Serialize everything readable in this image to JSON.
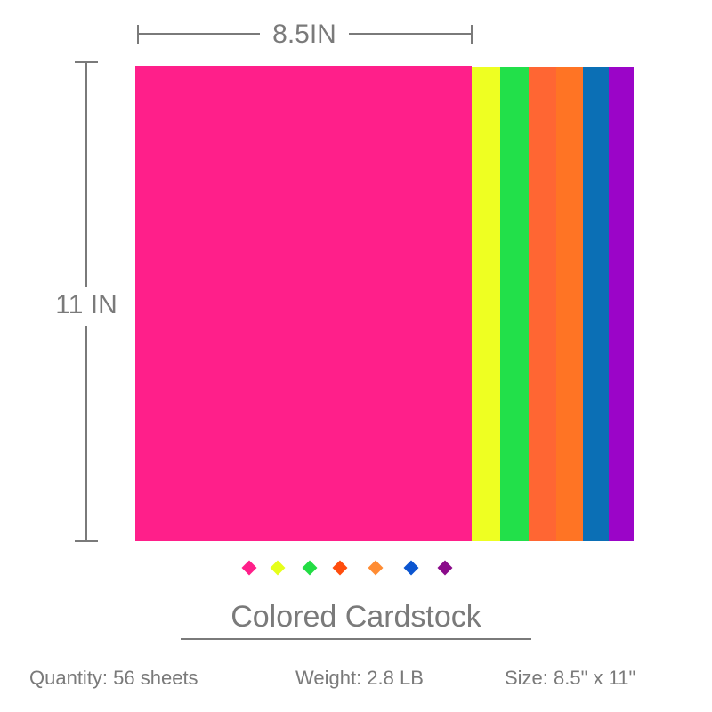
{
  "dimensions": {
    "width_label": "8.5IN",
    "height_label": "11 IN"
  },
  "title": "Colored Cardstock",
  "specs": [
    "Quantity: 56 sheets",
    "Weight: 2.8 LB",
    "Size: 8.5\" x 11\""
  ]
}
